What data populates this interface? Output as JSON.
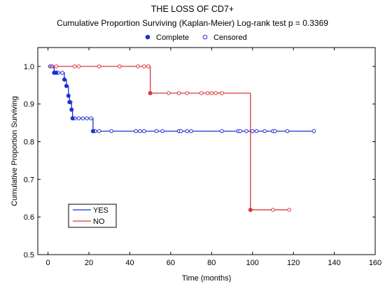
{
  "chart_data": {
    "type": "line",
    "title": "THE LOSS OF CD7+",
    "subtitle": "Cumulative Proportion Surviving (Kaplan-Meier)  Log-rank test  p = 0.3369",
    "xlabel": "Time (months)",
    "ylabel": "Cumulative Proportion Surviving",
    "xlim": [
      -5,
      160
    ],
    "ylim": [
      0.5,
      1.05
    ],
    "xticks": [
      0,
      20,
      40,
      60,
      80,
      100,
      120,
      140,
      160
    ],
    "yticks": [
      0.5,
      0.6,
      0.7,
      0.8,
      0.9,
      1.0
    ],
    "xtick_labels": [
      "0",
      "20",
      "40",
      "60",
      "80",
      "100",
      "120",
      "140",
      "160"
    ],
    "ytick_labels": [
      "0.5",
      "0.6",
      "0.7",
      "0.8",
      "0.9",
      "1.0"
    ],
    "marker_legend": {
      "complete_label": "Complete",
      "censored_label": "Censored"
    },
    "series": [
      {
        "name": "YES",
        "color": "#1f2fd6",
        "steps": [
          [
            0,
            1.0
          ],
          [
            3,
            0.983
          ],
          [
            8,
            0.965
          ],
          [
            9,
            0.948
          ],
          [
            10,
            0.922
          ],
          [
            10.5,
            0.905
          ],
          [
            11.5,
            0.885
          ],
          [
            12,
            0.862
          ],
          [
            22,
            0.828
          ],
          [
            130,
            0.828
          ]
        ],
        "events": [
          [
            3,
            0.983
          ],
          [
            4,
            0.983
          ],
          [
            8,
            0.965
          ],
          [
            9,
            0.948
          ],
          [
            10,
            0.922
          ],
          [
            10.5,
            0.905
          ],
          [
            11.5,
            0.885
          ],
          [
            12,
            0.862
          ],
          [
            22,
            0.828
          ]
        ],
        "censored": [
          [
            1,
            1.0
          ],
          [
            2,
            1.0
          ],
          [
            5,
            0.983
          ],
          [
            7,
            0.983
          ],
          [
            11,
            0.905
          ],
          [
            13,
            0.862
          ],
          [
            15,
            0.862
          ],
          [
            17,
            0.862
          ],
          [
            19,
            0.862
          ],
          [
            21,
            0.862
          ],
          [
            23,
            0.828
          ],
          [
            25,
            0.828
          ],
          [
            31,
            0.828
          ],
          [
            43,
            0.828
          ],
          [
            45,
            0.828
          ],
          [
            47,
            0.828
          ],
          [
            53,
            0.828
          ],
          [
            56,
            0.828
          ],
          [
            64,
            0.828
          ],
          [
            65,
            0.828
          ],
          [
            68,
            0.828
          ],
          [
            70,
            0.828
          ],
          [
            85,
            0.828
          ],
          [
            93,
            0.828
          ],
          [
            94,
            0.828
          ],
          [
            97,
            0.828
          ],
          [
            100,
            0.828
          ],
          [
            102,
            0.828
          ],
          [
            106,
            0.828
          ],
          [
            110,
            0.828
          ],
          [
            111,
            0.828
          ],
          [
            117,
            0.828
          ],
          [
            130,
            0.828
          ]
        ]
      },
      {
        "name": "NO",
        "color": "#d9393a",
        "steps": [
          [
            0,
            1.0
          ],
          [
            50,
            0.929
          ],
          [
            99,
            0.619
          ],
          [
            118,
            0.619
          ]
        ],
        "events": [
          [
            50,
            0.929
          ],
          [
            99,
            0.619
          ]
        ],
        "censored": [
          [
            4,
            1.0
          ],
          [
            13,
            1.0
          ],
          [
            15,
            1.0
          ],
          [
            25,
            1.0
          ],
          [
            35,
            1.0
          ],
          [
            44,
            1.0
          ],
          [
            47,
            1.0
          ],
          [
            49,
            1.0
          ],
          [
            59,
            0.929
          ],
          [
            64,
            0.929
          ],
          [
            68,
            0.929
          ],
          [
            75,
            0.929
          ],
          [
            78,
            0.929
          ],
          [
            80,
            0.929
          ],
          [
            82,
            0.929
          ],
          [
            85,
            0.929
          ],
          [
            110,
            0.619
          ],
          [
            118,
            0.619
          ]
        ]
      }
    ],
    "legend": {
      "position": "bottom-left",
      "entries": [
        "YES",
        "NO"
      ]
    }
  }
}
